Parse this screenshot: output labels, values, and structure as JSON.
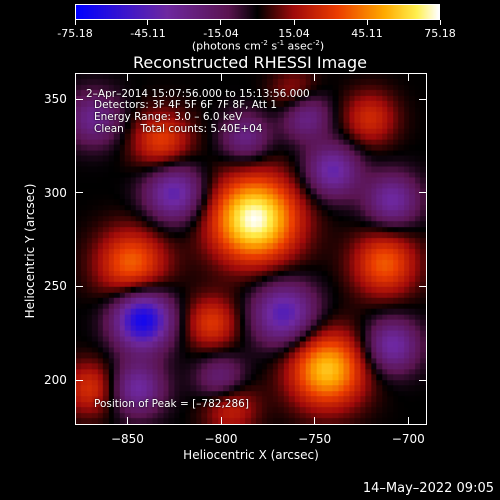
{
  "colorbar": {
    "tick_labels": [
      "-75.18",
      "-45.11",
      "-15.04",
      "15.04",
      "45.11",
      "75.18"
    ],
    "tick_values": [
      -75.18,
      -45.11,
      -15.04,
      15.04,
      45.11,
      75.18
    ],
    "range": [
      -75.18,
      75.18
    ],
    "units_prefix": "(photons cm",
    "units_sup1": "-2",
    "units_mid1": " s",
    "units_sup2": "-1",
    "units_mid2": " asec",
    "units_sup3": "-2",
    "units_suffix": ")"
  },
  "chart_data": {
    "type": "heatmap",
    "title": "Reconstructed RHESSI Image",
    "xlabel": "Heliocentric X (arcsec)",
    "ylabel": "Heliocentric Y (arcsec)",
    "xlim": [
      -878,
      -690
    ],
    "ylim": [
      176,
      364
    ],
    "x_ticks": [
      -850,
      -800,
      -750,
      -700
    ],
    "y_ticks": [
      200,
      250,
      300,
      350
    ],
    "x_tick_labels": [
      "−850",
      "−800",
      "−750",
      "−700"
    ],
    "y_tick_labels": [
      "200",
      "250",
      "300",
      "350"
    ],
    "peak_position": [
      -782,
      286
    ],
    "colormap": "rhessi-blue-purple-red-yellow-white",
    "sources": [
      {
        "x": -782,
        "y": 286,
        "amp": 75,
        "sigma": 16
      },
      {
        "x": -743,
        "y": 205,
        "amp": 58,
        "sigma": 14
      },
      {
        "x": -848,
        "y": 262,
        "amp": 40,
        "sigma": 13
      },
      {
        "x": -712,
        "y": 262,
        "amp": 38,
        "sigma": 12
      },
      {
        "x": -832,
        "y": 328,
        "amp": 32,
        "sigma": 11
      },
      {
        "x": -805,
        "y": 230,
        "amp": 30,
        "sigma": 10
      },
      {
        "x": -870,
        "y": 195,
        "amp": 28,
        "sigma": 10
      },
      {
        "x": -720,
        "y": 340,
        "amp": 26,
        "sigma": 10
      },
      {
        "x": -760,
        "y": 352,
        "amp": 22,
        "sigma": 9
      },
      {
        "x": -795,
        "y": 185,
        "amp": 25,
        "sigma": 10
      },
      {
        "x": -842,
        "y": 232,
        "amp": -70,
        "sigma": 11
      },
      {
        "x": -766,
        "y": 235,
        "amp": -48,
        "sigma": 12
      },
      {
        "x": -825,
        "y": 300,
        "amp": -45,
        "sigma": 11
      },
      {
        "x": -740,
        "y": 312,
        "amp": -42,
        "sigma": 10
      },
      {
        "x": -708,
        "y": 296,
        "amp": -38,
        "sigma": 10
      },
      {
        "x": -708,
        "y": 218,
        "amp": -40,
        "sigma": 10
      },
      {
        "x": -755,
        "y": 342,
        "amp": -36,
        "sigma": 9
      },
      {
        "x": -845,
        "y": 195,
        "amp": -38,
        "sigma": 10
      },
      {
        "x": -787,
        "y": 330,
        "amp": -30,
        "sigma": 9
      },
      {
        "x": -868,
        "y": 340,
        "amp": -32,
        "sigma": 10
      },
      {
        "x": -800,
        "y": 200,
        "amp": -28,
        "sigma": 9
      }
    ]
  },
  "info": {
    "date_line": " 2–Apr–2014 15:07:56.000 to 15:13:56.000",
    "detectors_line": "Detectors: 3F 4F 5F 6F 7F 8F, Att 1",
    "energy_line": "Energy Range: 3.0 – 6.0 keV",
    "clean_line": "Clean     Total counts: 5.40E+04",
    "peak_line": "Position of Peak = [–782,286]"
  },
  "footer": {
    "date": "14–May–2022 09:05"
  }
}
